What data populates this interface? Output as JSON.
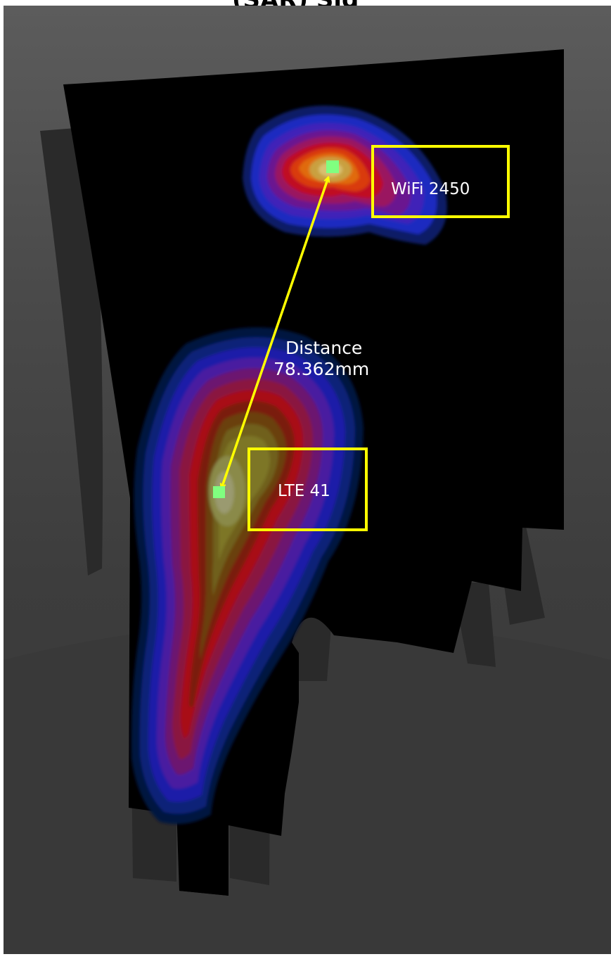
{
  "header": {
    "title": "(SAR) Sig"
  },
  "markers": [
    {
      "id": "wifi",
      "label": "WiFi 2450"
    },
    {
      "id": "lte",
      "label": "LTE 41"
    }
  ],
  "measurement": {
    "caption": "Distance",
    "value": "78.362mm"
  },
  "colors": {
    "annotation": "#ffff00",
    "marker": "#80ff80",
    "surface": "#000000",
    "background_top": "#5c5c5c",
    "background_bottom": "#383838"
  }
}
